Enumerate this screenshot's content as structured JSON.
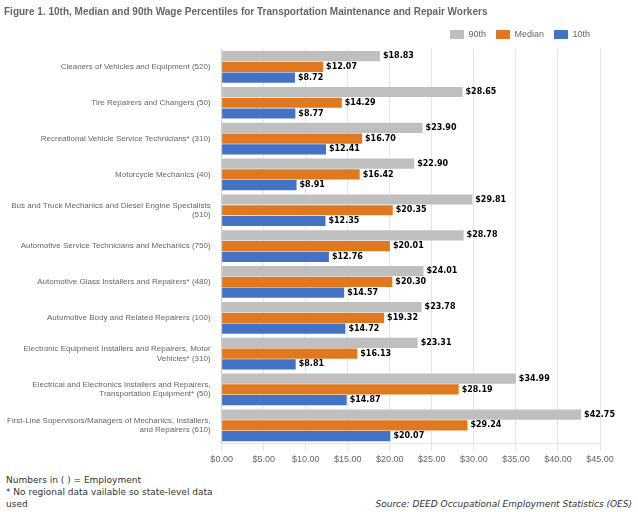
{
  "chart_data": {
    "type": "bar",
    "orientation": "horizontal",
    "title": "Figure 1. 10th, Median and 90th Wage Percentiles for Transportation Maintenance and Repair Workers",
    "categories": [
      "Cleaners of Vehicles and Equipment (520)",
      "Tire Repairers and Changers (50)",
      "Recreational Vehicle Service Technicians* (310)",
      "Motorcycle Mechanics (40)",
      "Bus and Truck Mechanics and Diesel Engine Specialists\n(510)",
      "Automotive Service Technicians and Mechanics (750)",
      "Automotive Glass Installers and Repairers* (480)",
      "Automotive Body and Related Repairers (100)",
      "Electronic Equipment Installers and Repairers, Motor\nVehicles* (310)",
      "Electrical and Electronics Installers and Repairers,\nTransportation Equipment* (50)",
      "First-Line Supervisors/Managers of Mechanics, Installers,\nand Repairers (610)"
    ],
    "series": [
      {
        "name": "90th",
        "color": "#bfbfbf",
        "values": [
          18.83,
          28.65,
          23.9,
          22.9,
          29.81,
          28.78,
          24.01,
          23.78,
          23.31,
          34.99,
          42.75
        ],
        "value_labels": [
          "$18.83",
          "$28.65",
          "$23.90",
          "$22.90",
          "$29.81",
          "$28.78",
          "$24.01",
          "$23.78",
          "$23.31",
          "$34.99",
          "$42.75"
        ]
      },
      {
        "name": "Median",
        "color": "#e07820",
        "values": [
          12.07,
          14.29,
          16.7,
          16.42,
          20.35,
          20.01,
          20.3,
          19.32,
          16.13,
          28.19,
          29.24
        ],
        "value_labels": [
          "$12.07",
          "$14.29",
          "$16.70",
          "$16.42",
          "$20.35",
          "$20.01",
          "$20.30",
          "$19.32",
          "$16.13",
          "$28.19",
          "$29.24"
        ]
      },
      {
        "name": "10th",
        "color": "#4472c4",
        "values": [
          8.72,
          8.77,
          12.41,
          8.91,
          12.35,
          12.76,
          14.57,
          14.72,
          8.81,
          14.87,
          20.07
        ],
        "value_labels": [
          "$8.72",
          "$8.77",
          "$12.41",
          "$8.91",
          "$12.35",
          "$12.76",
          "$14.57",
          "$14.72",
          "$8.81",
          "$14.87",
          "$20.07"
        ]
      }
    ],
    "xlim": [
      0,
      45
    ],
    "xticks": [
      {
        "value": 0,
        "label": "$0.00"
      },
      {
        "value": 5,
        "label": "$5.00"
      },
      {
        "value": 10,
        "label": "$10.00"
      },
      {
        "value": 15,
        "label": "$15.00"
      },
      {
        "value": 20,
        "label": "$20.00"
      },
      {
        "value": 25,
        "label": "$25.00"
      },
      {
        "value": 30,
        "label": "$30.00"
      },
      {
        "value": 35,
        "label": "$35.00"
      },
      {
        "value": 40,
        "label": "$40.00"
      },
      {
        "value": 45,
        "label": "$45.00"
      }
    ],
    "grid": true,
    "legend": "upper right",
    "data_labels": true,
    "footnote": "Numbers in ( ) = Employment\n* No regional data vailable so state-level data\nused",
    "source": "Source: DEED Occupational Employment Statistics (OES)"
  }
}
